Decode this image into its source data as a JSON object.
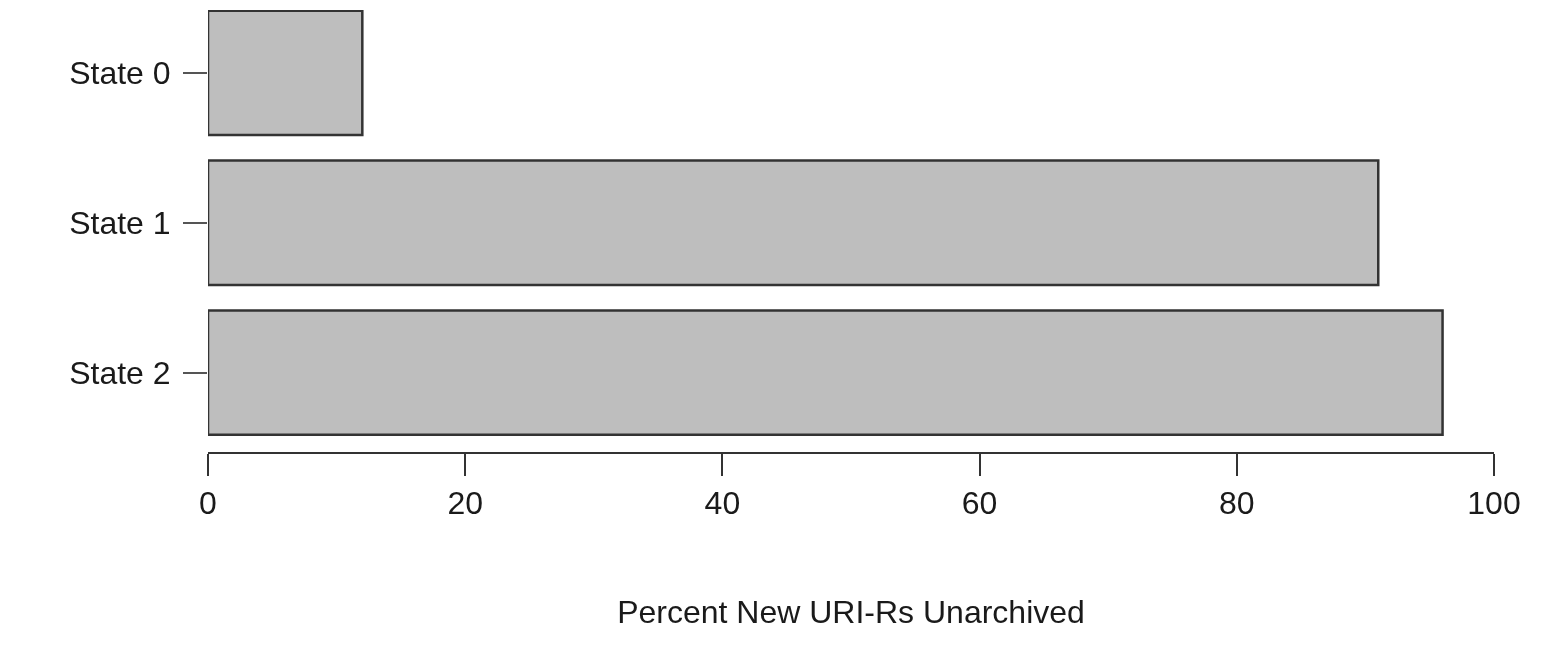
{
  "chart_data": {
    "type": "bar",
    "orientation": "horizontal",
    "xlabel": "Percent New URI-Rs Unarchived",
    "categories": [
      "State 0",
      "State 1",
      "State 2"
    ],
    "values": [
      12,
      91,
      96
    ],
    "color": "#bebebe",
    "xlim": [
      0,
      100
    ],
    "xticks": [
      0,
      20,
      40,
      60,
      80,
      100
    ]
  }
}
